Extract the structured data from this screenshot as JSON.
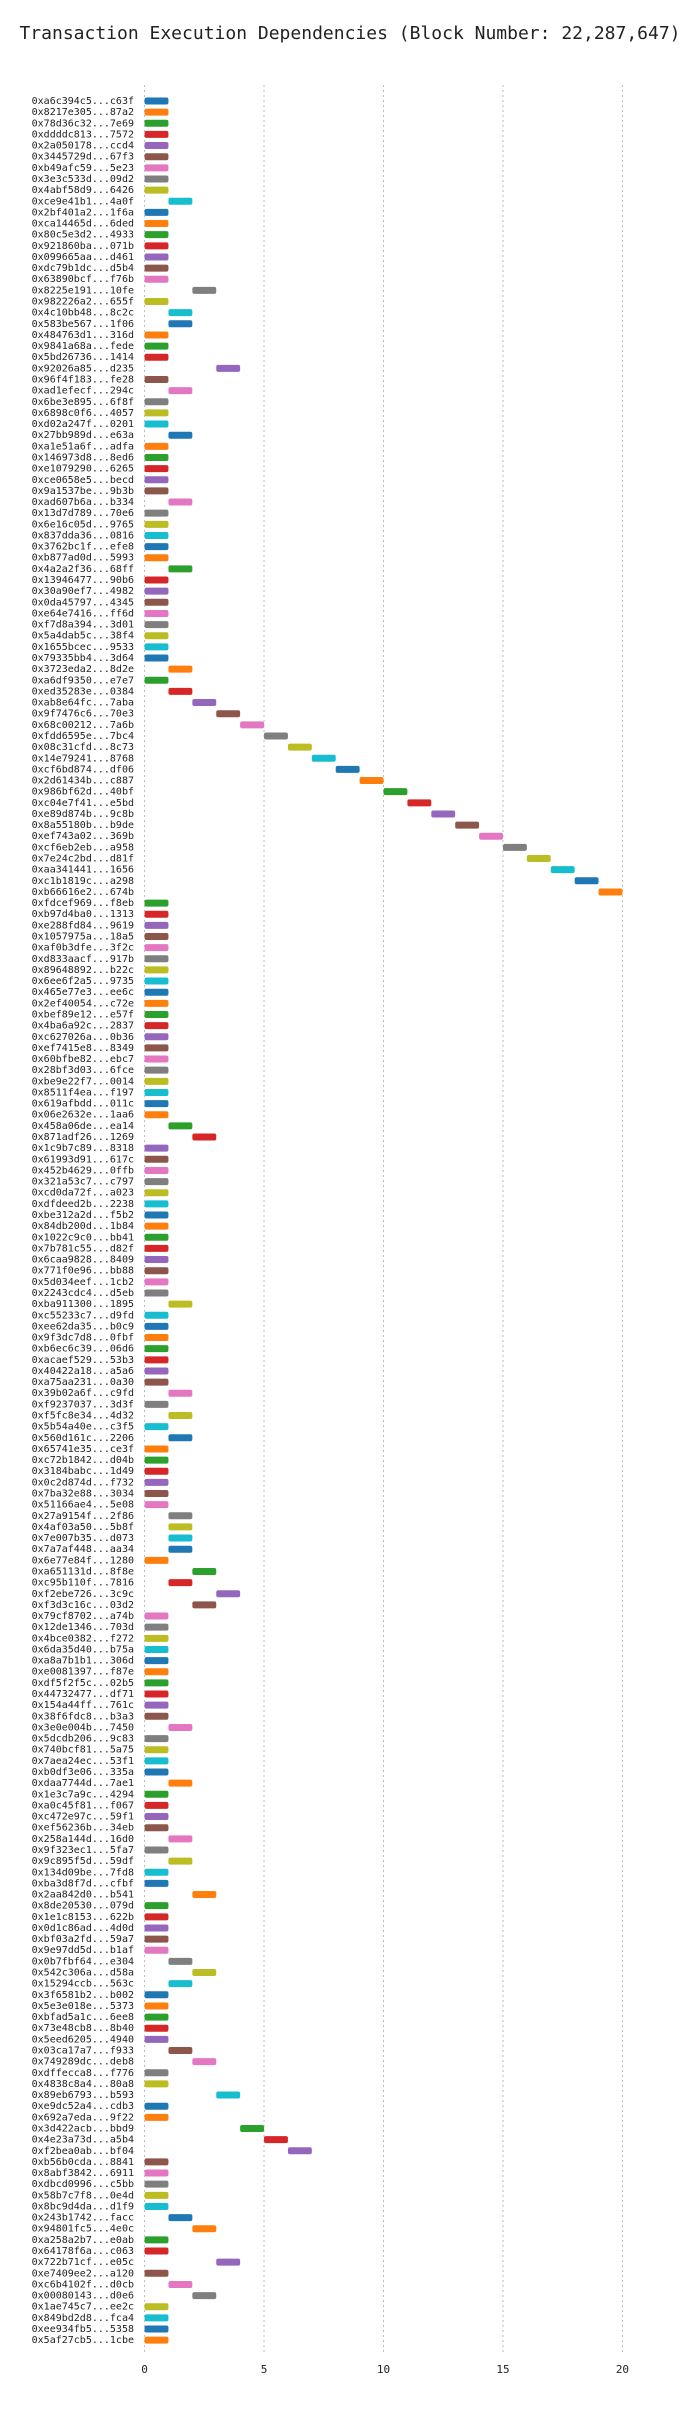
{
  "chart_data": {
    "type": "gantt",
    "title": "Transaction Execution Dependencies (Block Number: 22,287,647)",
    "categories": [
      "0xa6c394c5...c63f",
      "0x8217e305...87a2",
      "0x78d36c32...7e69",
      "0xddddc813...7572",
      "0x2a050178...ccd4",
      "0x3445729d...67f3",
      "0xb49afc59...5e23",
      "0x3e3c533d...09d2",
      "0x4abf58d9...6426",
      "0xce9e41b1...4a0f",
      "0x2bf401a2...1f6a",
      "0xca14465d...6ded",
      "0x80c5e3d2...4933",
      "0x921860ba...071b",
      "0x099665aa...d461",
      "0xdc79b1dc...d5b4",
      "0x63890bcf...f76b",
      "0x8225e191...10fe",
      "0x982226a2...655f",
      "0x4c10bb48...8c2c",
      "0x583be567...1f06",
      "0x484763d1...316d",
      "0x9841a68a...fede",
      "0x5bd26736...1414",
      "0x92026a85...d235",
      "0x96f4f183...fe28",
      "0xad1efecf...294c",
      "0x6be3e895...6f8f",
      "0x6898c0f6...4057",
      "0xd02a247f...0201",
      "0x27bb989d...e63a",
      "0xa1e51a6f...adfa",
      "0x146973d8...8ed6",
      "0xe1079290...6265",
      "0xce0658e5...becd",
      "0x9a1537be...9b3b",
      "0xad607b6a...b334",
      "0x13d7d789...70e6",
      "0x6e16c05d...9765",
      "0x837dda36...0816",
      "0x3762bc1f...efe8",
      "0xb877ad0d...5993",
      "0x4a2a2f36...68ff",
      "0x13946477...90b6",
      "0x30a90ef7...4982",
      "0x0da45797...4345",
      "0xe64e7416...ff6d",
      "0xf7d8a394...3d01",
      "0x5a4dab5c...38f4",
      "0x1655bcec...9533",
      "0x79335bb4...3d64",
      "0x3723eda2...8d2e",
      "0xa6df9350...e7e7",
      "0xed35283e...0384",
      "0xab8e64fc...7aba",
      "0x9f7476c6...70e3",
      "0x68c00212...7a6b",
      "0xfdd6595e...7bc4",
      "0x08c31cfd...8c73",
      "0x14e79241...8768",
      "0xcf6bd874...df06",
      "0x2d61434b...c887",
      "0x986bf62d...40bf",
      "0xc04e7f41...e5bd",
      "0xe89d874b...9c8b",
      "0x8a55180b...b9de",
      "0xef743a02...369b",
      "0xcf6eb2eb...a958",
      "0x7e24c2bd...d81f",
      "0xaa341441...1656",
      "0xc1b1819c...a298",
      "0xb66616e2...674b",
      "0xfdcef969...f8eb",
      "0xb97d4ba0...1313",
      "0xe288fd84...9619",
      "0x1057975a...18a5",
      "0xaf0b3dfe...3f2c",
      "0xd833aacf...917b",
      "0x89648892...b22c",
      "0x6ee6f2a5...9735",
      "0x465e77e3...ee6c",
      "0x2ef40054...c72e",
      "0xbef89e12...e57f",
      "0x4ba6a92c...2837",
      "0xc627026a...0b36",
      "0xef7415e8...8349",
      "0x60bfbe82...ebc7",
      "0x28bf3d03...6fce",
      "0xbe9e22f7...0014",
      "0x8511f4ea...f197",
      "0x619afbdd...011c",
      "0x06e2632e...1aa6",
      "0x458a06de...ea14",
      "0x871adf26...1269",
      "0x1c9b7c89...8318",
      "0x61993d91...617c",
      "0x452b4629...0ffb",
      "0x321a53c7...c797",
      "0xcd0da72f...a023",
      "0xdfdeed2b...2238",
      "0xbe312a2d...f5b2",
      "0x84db200d...1b84",
      "0x1022c9c0...bb41",
      "0x7b781c55...d82f",
      "0x6caa9828...8409",
      "0x771f0e96...bb88",
      "0x5d034eef...1cb2",
      "0x2243cdc4...d5eb",
      "0xba911300...1895",
      "0xc55233c7...d9fd",
      "0xee62da35...b0c9",
      "0x9f3dc7d8...0fbf",
      "0xb6ec6c39...06d6",
      "0xacaef529...53b3",
      "0x40422a18...a5a6",
      "0xa75aa231...0a30",
      "0x39b02a6f...c9fd",
      "0xf9237037...3d3f",
      "0xf5fc8e34...4d32",
      "0x5b54a40e...c3f5",
      "0x560d161c...2206",
      "0x65741e35...ce3f",
      "0xc72b1842...d04b",
      "0x3184babc...1d49",
      "0x0c2d874d...f732",
      "0x7ba32e88...3034",
      "0x51166ae4...5e08",
      "0x27a9154f...2f86",
      "0x4af03a50...5b8f",
      "0x7e007b35...d073",
      "0x7a7af448...aa34",
      "0x6e77e84f...1280",
      "0xa651131d...8f8e",
      "0xc95b110f...7816",
      "0xf2ebe726...3c9c",
      "0xf3d3c16c...03d2",
      "0x79cf8702...a74b",
      "0x12de1346...703d",
      "0x4bce0382...f272",
      "0x6da35d40...b75a",
      "0xa8a7b1b1...306d",
      "0xe0081397...f87e",
      "0xdf5f2f5c...02b5",
      "0x44732477...df71",
      "0x154a44ff...761c",
      "0x38f6fdc8...b3a3",
      "0x3e0e004b...7450",
      "0x5dcdb206...9c83",
      "0x740bcf81...5a75",
      "0x7aea24ec...53f1",
      "0xb0df3e06...335a",
      "0xdaa7744d...7ae1",
      "0x1e3c7a9c...4294",
      "0xa0c45f81...f067",
      "0xc472e97c...59f1",
      "0xef56236b...34eb",
      "0x258a144d...16d0",
      "0x9f323ec1...5fa7",
      "0x9c895f5d...59df",
      "0x134d09be...7fd8",
      "0xba3d8f7d...cfbf",
      "0x2aa842d0...b541",
      "0x8de20530...079d",
      "0x1e1c8153...622b",
      "0x0d1c86ad...4d0d",
      "0xbf03a2fd...59a7",
      "0x9e97dd5d...b1af",
      "0x0b7fbf64...e304",
      "0x542c306a...d58a",
      "0x15294ccb...563c",
      "0x3f6581b2...b002",
      "0x5e3e018e...5373",
      "0xbfad5a1c...6ee8",
      "0x73e48cb8...8b40",
      "0x5eed6205...4940",
      "0x03ca17a7...f933",
      "0x749289dc...deb8",
      "0xdffecca8...f776",
      "0x4838c8a4...80a8",
      "0x89eb6793...b593",
      "0xe9dc52a4...cdb3",
      "0x692a7eda...9f22",
      "0x3d422acb...bbd9",
      "0x4e23a73d...a5b4",
      "0xf2bea0ab...bf04",
      "0xb56b0cda...8841",
      "0x8abf3842...6911",
      "0xdbcd0996...c5bb",
      "0x58b7c7f8...0e4d",
      "0x8bc9d4da...d1f9",
      "0x243b1742...facc",
      "0x94801fc5...4e0c",
      "0xa258a2b7...e0ab",
      "0x64178f6a...c063",
      "0x722b71cf...e05c",
      "0xe7409ee2...a120",
      "0xc6b4102f...d0cb",
      "0x00080143...d0e6",
      "0x1ae745c7...ee2c",
      "0x849bd2d8...fca4",
      "0xee934fb5...5358",
      "0x5af27cb5...1cbe"
    ],
    "starts": [
      0,
      0,
      0,
      0,
      0,
      0,
      0,
      0,
      0,
      1,
      0,
      0,
      0,
      0,
      0,
      0,
      0,
      2,
      0,
      1,
      1,
      0,
      0,
      0,
      3,
      0,
      1,
      0,
      0,
      0,
      1,
      0,
      0,
      0,
      0,
      0,
      1,
      0,
      0,
      0,
      0,
      0,
      1,
      0,
      0,
      0,
      0,
      0,
      0,
      0,
      0,
      1,
      0,
      1,
      2,
      3,
      4,
      5,
      6,
      7,
      8,
      9,
      10,
      11,
      12,
      13,
      14,
      15,
      16,
      17,
      18,
      19,
      0,
      0,
      0,
      0,
      0,
      0,
      0,
      0,
      0,
      0,
      0,
      0,
      0,
      0,
      0,
      0,
      0,
      0,
      0,
      0,
      1,
      2,
      0,
      0,
      0,
      0,
      0,
      0,
      0,
      0,
      0,
      0,
      0,
      0,
      0,
      0,
      1,
      0,
      0,
      0,
      0,
      0,
      0,
      0,
      1,
      0,
      1,
      0,
      1,
      0,
      0,
      0,
      0,
      0,
      0,
      1,
      1,
      1,
      1,
      0,
      2,
      1,
      3,
      2,
      0,
      0,
      0,
      0,
      0,
      0,
      0,
      0,
      0,
      0,
      1,
      0,
      0,
      0,
      0,
      1,
      0,
      0,
      0,
      0,
      1,
      0,
      1,
      0,
      0,
      2,
      0,
      0,
      0,
      0,
      0,
      1,
      2,
      1,
      0,
      0,
      0,
      0,
      0,
      1,
      2,
      0,
      0,
      3,
      0,
      0,
      4,
      5,
      6,
      0,
      0,
      0,
      0,
      0,
      1,
      2,
      0,
      0,
      3,
      0,
      1,
      2,
      0,
      0,
      0,
      0
    ],
    "ends": [
      1,
      1,
      1,
      1,
      1,
      1,
      1,
      1,
      1,
      2,
      1,
      1,
      1,
      1,
      1,
      1,
      1,
      3,
      1,
      2,
      2,
      1,
      1,
      1,
      4,
      1,
      2,
      1,
      1,
      1,
      2,
      1,
      1,
      1,
      1,
      1,
      2,
      1,
      1,
      1,
      1,
      1,
      2,
      1,
      1,
      1,
      1,
      1,
      1,
      1,
      1,
      2,
      1,
      2,
      3,
      4,
      5,
      6,
      7,
      8,
      9,
      10,
      11,
      12,
      13,
      14,
      15,
      16,
      17,
      18,
      19,
      20,
      1,
      1,
      1,
      1,
      1,
      1,
      1,
      1,
      1,
      1,
      1,
      1,
      1,
      1,
      1,
      1,
      1,
      1,
      1,
      1,
      2,
      3,
      1,
      1,
      1,
      1,
      1,
      1,
      1,
      1,
      1,
      1,
      1,
      1,
      1,
      1,
      2,
      1,
      1,
      1,
      1,
      1,
      1,
      1,
      2,
      1,
      2,
      1,
      2,
      1,
      1,
      1,
      1,
      1,
      1,
      2,
      2,
      2,
      2,
      1,
      3,
      2,
      4,
      3,
      1,
      1,
      1,
      1,
      1,
      1,
      1,
      1,
      1,
      1,
      2,
      1,
      1,
      1,
      1,
      2,
      1,
      1,
      1,
      1,
      2,
      1,
      2,
      1,
      1,
      3,
      1,
      1,
      1,
      1,
      1,
      2,
      3,
      2,
      1,
      1,
      1,
      1,
      1,
      2,
      3,
      1,
      1,
      4,
      1,
      1,
      5,
      6,
      7,
      1,
      1,
      1,
      1,
      1,
      2,
      3,
      1,
      1,
      4,
      1,
      2,
      3,
      1,
      1,
      1,
      1
    ],
    "colors": [
      "#1f77b4",
      "#ff7f0e",
      "#2ca02c",
      "#d62728",
      "#9467bd",
      "#8c564b",
      "#e377c2",
      "#7f7f7f",
      "#bcbd22",
      "#17becf"
    ],
    "xlim": [
      -0.4,
      20.4
    ],
    "xticks": [
      0,
      5,
      10,
      15,
      20
    ],
    "grid": true
  }
}
